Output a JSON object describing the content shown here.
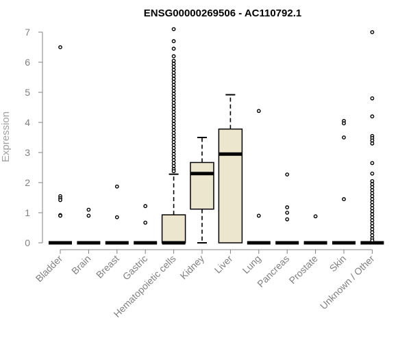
{
  "chart_data": {
    "type": "boxplot",
    "title": "ENSG00000269506 - AC110792.1",
    "xlabel": "",
    "ylabel": "Expression",
    "ylim": [
      0,
      7
    ],
    "yticks": [
      0,
      1,
      2,
      3,
      4,
      5,
      6,
      7
    ],
    "colors": {
      "box_fill": "#ede6cf",
      "line": "#000000",
      "axis_text": "#808080",
      "ylabel_text": "#a0a0a0"
    },
    "categories": [
      "Bladder",
      "Brain",
      "Breast",
      "Gastric",
      "Hematopoietic cells",
      "Kidney",
      "Liver",
      "Lung",
      "Pancreas",
      "Prostate",
      "Skin",
      "Unknown / Other"
    ],
    "boxes": [
      {
        "name": "Bladder",
        "q1": 0,
        "median": 0,
        "q3": 0,
        "whisker_low": 0,
        "whisker_high": 0,
        "outliers": [
          6.5,
          1.55,
          1.48,
          1.42,
          0.92,
          0.9
        ]
      },
      {
        "name": "Brain",
        "q1": 0,
        "median": 0,
        "q3": 0,
        "whisker_low": 0,
        "whisker_high": 0,
        "outliers": [
          1.1,
          0.9
        ]
      },
      {
        "name": "Breast",
        "q1": 0,
        "median": 0,
        "q3": 0,
        "whisker_low": 0,
        "whisker_high": 0,
        "outliers": [
          1.87,
          0.85
        ]
      },
      {
        "name": "Gastric",
        "q1": 0,
        "median": 0,
        "q3": 0,
        "whisker_low": 0,
        "whisker_high": 0,
        "outliers": [
          1.22,
          0.67
        ]
      },
      {
        "name": "Hematopoietic cells",
        "q1": 0,
        "median": 0,
        "q3": 0.93,
        "whisker_low": 0,
        "whisker_high": 2.28,
        "outliers": [
          7.1,
          6.7,
          6.45,
          6.2,
          6.05,
          5.95,
          5.85,
          5.75,
          5.65,
          5.55,
          5.45,
          5.35,
          5.25,
          5.15,
          5.05,
          4.95,
          4.85,
          4.75,
          4.65,
          4.55,
          4.45,
          4.35,
          4.25,
          4.15,
          4.05,
          3.95,
          3.85,
          3.75,
          3.65,
          3.55,
          3.45,
          3.35,
          3.25,
          3.15,
          3.05,
          2.95,
          2.85,
          2.75,
          2.65,
          2.55,
          2.45,
          2.38
        ]
      },
      {
        "name": "Kidney",
        "q1": 1.12,
        "median": 2.3,
        "q3": 2.67,
        "whisker_low": 0,
        "whisker_high": 3.5,
        "outliers": []
      },
      {
        "name": "Liver",
        "q1": 0,
        "median": 2.95,
        "q3": 3.78,
        "whisker_low": 0,
        "whisker_high": 4.92,
        "outliers": []
      },
      {
        "name": "Lung",
        "q1": 0,
        "median": 0,
        "q3": 0,
        "whisker_low": 0,
        "whisker_high": 0,
        "outliers": [
          4.38,
          0.9
        ]
      },
      {
        "name": "Pancreas",
        "q1": 0,
        "median": 0,
        "q3": 0,
        "whisker_low": 0,
        "whisker_high": 0,
        "outliers": [
          2.27,
          1.18,
          1.0,
          0.78
        ]
      },
      {
        "name": "Prostate",
        "q1": 0,
        "median": 0,
        "q3": 0,
        "whisker_low": 0,
        "whisker_high": 0,
        "outliers": [
          0.88
        ]
      },
      {
        "name": "Skin",
        "q1": 0,
        "median": 0,
        "q3": 0,
        "whisker_low": 0,
        "whisker_high": 0,
        "outliers": [
          4.05,
          3.97,
          3.5,
          1.45
        ]
      },
      {
        "name": "Unknown / Other",
        "q1": 0,
        "median": 0,
        "q3": 0,
        "whisker_low": 0,
        "whisker_high": 0,
        "outliers": [
          7.0,
          4.8,
          4.2,
          3.55,
          3.48,
          3.4,
          3.3,
          2.65,
          2.3,
          2.05,
          1.95,
          1.85,
          1.75,
          1.65,
          1.55,
          1.45,
          1.35,
          1.25,
          1.15,
          1.05,
          0.95,
          0.85,
          0.75,
          0.65,
          0.55,
          0.45,
          0.35,
          0.25,
          0.15,
          0.08
        ]
      }
    ]
  }
}
